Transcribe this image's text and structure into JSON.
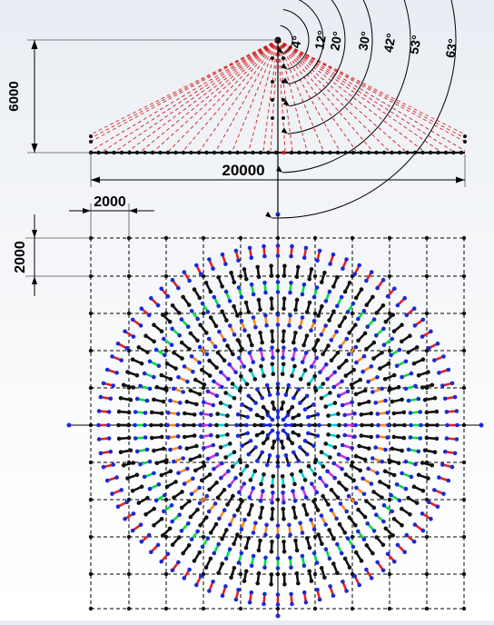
{
  "elevation": {
    "height_label": "6000",
    "width_label": "20000",
    "angles": [
      "4°",
      "12°",
      "20°",
      "30°",
      "42°",
      "53°",
      "63°"
    ]
  },
  "plan": {
    "grid_x_label": "2000",
    "grid_y_label": "2000"
  },
  "colors": {
    "background_top": "#e9edf3",
    "rays": "#d41a1a",
    "dimension": "#000000",
    "ring_palette": [
      "#0a22dd",
      "#111111",
      "#00d5d5",
      "#cc33dd",
      "#111111",
      "#ff8a1f",
      "#111111",
      "#00dd44",
      "#111111",
      "#e62020",
      "#0a22dd"
    ],
    "node_blue": "#1a2ad8",
    "node_black": "#111111"
  }
}
